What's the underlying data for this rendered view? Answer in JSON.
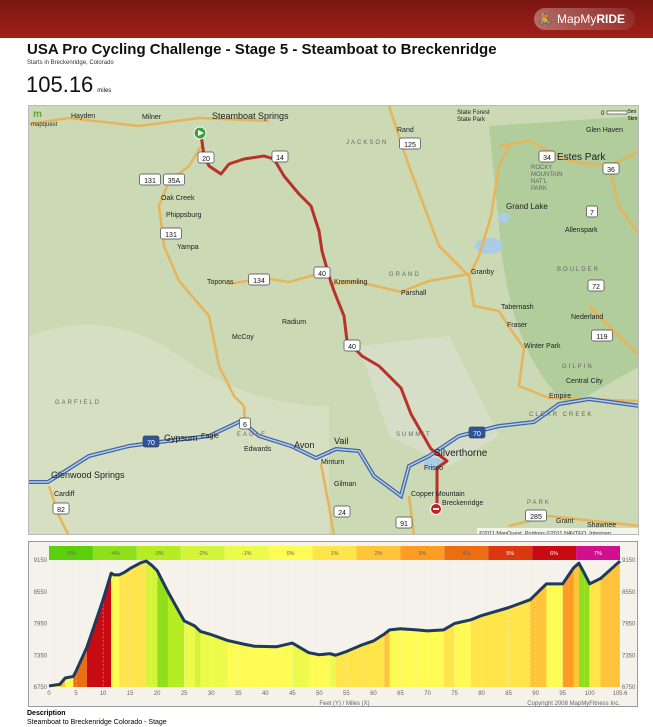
{
  "header": {
    "logo_text_light": "MapMy",
    "logo_text_bold": "RIDE",
    "brand_color": "#8e1c16"
  },
  "route": {
    "title": "USA Pro Cycling Challenge - Stage 5 - Steamboat to Breckenridge",
    "starts_in": "Starts in Breckenridge, Colorado",
    "distance": "105.16",
    "distance_unit": "miles"
  },
  "map": {
    "provider_logo": "mapquest",
    "scale_labels": [
      "0",
      "5mi",
      "5km"
    ],
    "copyright": "©2011 MapQuest, Portions ©2011 NAVTEQ, Intermap",
    "start_icon": "play-marker-icon",
    "end_icon": "stop-marker-icon",
    "route_color": "#b8322a",
    "labels": [
      "Hayden",
      "Milner",
      "Steamboat Springs",
      "Oak Creek",
      "Phippsburg",
      "Yampa",
      "Toponas",
      "McCoy",
      "Radium",
      "Kremmling",
      "Parshall",
      "Granby",
      "Grand Lake",
      "Tabernash",
      "Fraser",
      "Winter Park",
      "Rand",
      "Estes Park",
      "Glen Haven",
      "Allenspark",
      "Nederland",
      "Central City",
      "Empire",
      "Silverthorne",
      "Frisco",
      "Copper Mountain",
      "Breckenridge",
      "Vail",
      "Avon",
      "Edwards",
      "Eagle",
      "Gypsum",
      "Glenwood Springs",
      "Cardiff",
      "Minturn",
      "Gilman",
      "Grant",
      "Shawnee",
      "JACKSON",
      "GRAND",
      "BOULDER",
      "GARFIELD",
      "EAGLE",
      "SUMMIT",
      "GILPIN",
      "CLEAR CREEK",
      "PARK",
      "ROCKY MOUNTAIN NAT'L PARK",
      "State Forest State Park"
    ],
    "shields": [
      "20",
      "14",
      "131",
      "35A",
      "131",
      "134",
      "40",
      "125",
      "34",
      "36",
      "7",
      "72",
      "119",
      "6",
      "70",
      "70",
      "24",
      "91",
      "285",
      "82",
      "40"
    ]
  },
  "chart_data": {
    "type": "area",
    "xlabel": "Feet (Y) / Miles (X)",
    "copyright": "Copyright 2008 MapMyFitness Inc.",
    "x_ticks": [
      "0",
      "5",
      "10",
      "15",
      "20",
      "25",
      "30",
      "35",
      "40",
      "45",
      "50",
      "55",
      "60",
      "65",
      "70",
      "75",
      "80",
      "85",
      "90",
      "95",
      "100",
      "105.6"
    ],
    "y_ticks": [
      "9150",
      "8550",
      "7950",
      "7350",
      "6750"
    ],
    "xlim": [
      0,
      105.6
    ],
    "ylim": [
      6750,
      9150
    ],
    "grade_legend": [
      {
        "label": "-5%",
        "color": "#5ccf0c"
      },
      {
        "label": "-4%",
        "color": "#8fe01a"
      },
      {
        "label": "-3%",
        "color": "#b6ec24"
      },
      {
        "label": "-2%",
        "color": "#d4f43a"
      },
      {
        "label": "-1%",
        "color": "#ecfa4c"
      },
      {
        "label": "0%",
        "color": "#fffb55"
      },
      {
        "label": "1%",
        "color": "#ffe44a"
      },
      {
        "label": "2%",
        "color": "#ffc43a"
      },
      {
        "label": "3%",
        "color": "#ff9c22"
      },
      {
        "label": "4%",
        "color": "#ec6e12"
      },
      {
        "label": "5%",
        "color": "#dc3810"
      },
      {
        "label": "6%",
        "color": "#c80a12"
      },
      {
        "label": "7%",
        "color": "#d0108c"
      }
    ],
    "series": [
      {
        "x": [
          0,
          2,
          3,
          4.5,
          5,
          7,
          10,
          11.5,
          12,
          13,
          14,
          15,
          17,
          18,
          19,
          20,
          22,
          25,
          27,
          28,
          30,
          33,
          36,
          38,
          42,
          45,
          48,
          50,
          52,
          53,
          55,
          58,
          60,
          62,
          63,
          65,
          68,
          70,
          73,
          75,
          78,
          80,
          85,
          89,
          91,
          92,
          95,
          96,
          97,
          98,
          99,
          100,
          102,
          105.6
        ],
        "y": [
          6770,
          6800,
          6920,
          6950,
          7050,
          7500,
          8400,
          8900,
          8870,
          8870,
          8920,
          8990,
          9100,
          9130,
          9050,
          8950,
          8550,
          8000,
          7900,
          7800,
          7740,
          7630,
          7560,
          7520,
          7510,
          7580,
          7400,
          7360,
          7380,
          7350,
          7420,
          7550,
          7620,
          7750,
          7830,
          7850,
          7830,
          7810,
          7830,
          7950,
          8020,
          8100,
          8250,
          8400,
          8600,
          8700,
          8700,
          8850,
          9000,
          9090,
          8900,
          8700,
          8800,
          9130
        ]
      }
    ]
  },
  "description": {
    "label": "Description",
    "text": "Steamboat to Breckenridge Colorado - Stage"
  }
}
